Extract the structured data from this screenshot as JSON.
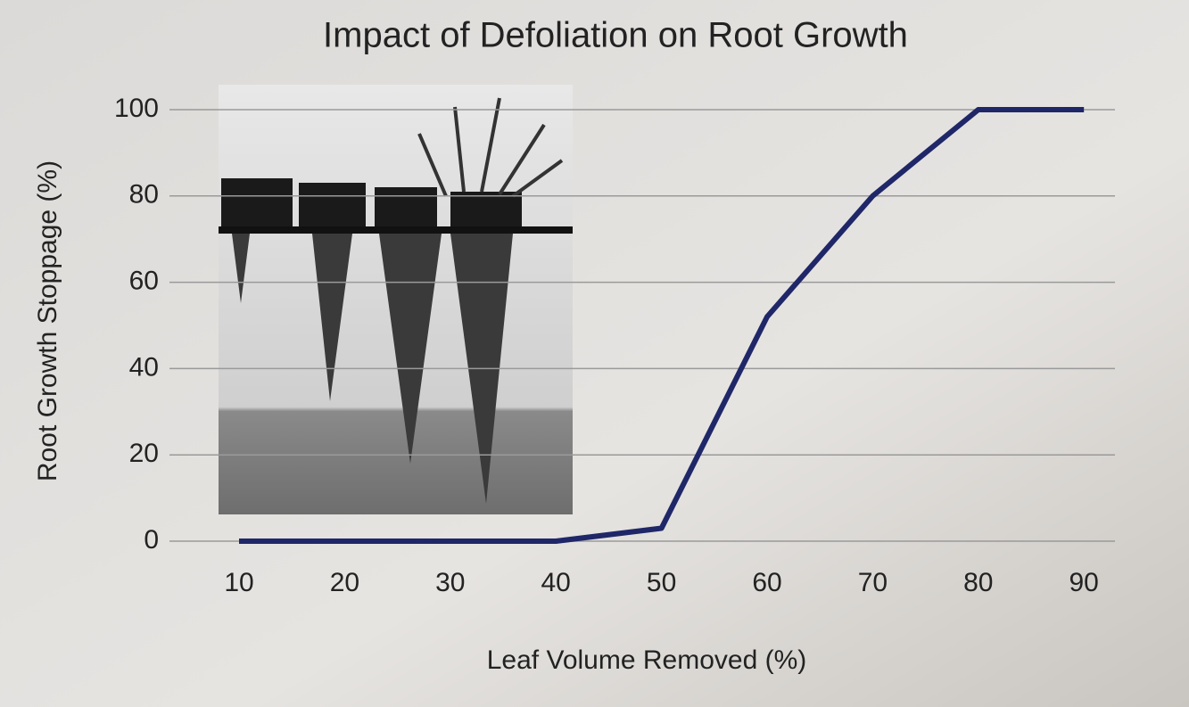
{
  "chart_data": {
    "type": "line",
    "title": "Impact of Defoliation on Root Growth",
    "x_label": "Leaf Volume Removed (%)",
    "y_label": "Root Growth Stoppage (%)",
    "categories": [
      "10",
      "20",
      "30",
      "40",
      "50",
      "60",
      "70",
      "80",
      "90"
    ],
    "values": [
      0,
      0,
      0,
      0,
      3,
      52,
      80,
      100,
      100
    ],
    "color": "#1f2768",
    "ylim": [
      0,
      100
    ],
    "yticks": [
      0,
      20,
      40,
      60,
      80,
      100
    ],
    "grid": true
  }
}
